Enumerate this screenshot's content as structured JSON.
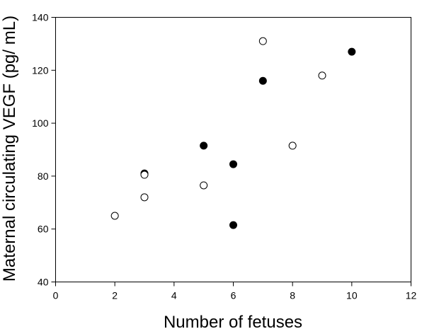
{
  "chart_data": {
    "type": "scatter",
    "title": "",
    "xlabel": "Number of fetuses",
    "ylabel": "Maternal circulating VEGF (pg/ mL)",
    "xlim": [
      0,
      12
    ],
    "ylim": [
      40,
      140
    ],
    "x_ticks": [
      0,
      2,
      4,
      6,
      8,
      10,
      12
    ],
    "y_ticks": [
      40,
      60,
      80,
      100,
      120,
      140
    ],
    "grid": false,
    "legend": "none",
    "series": [
      {
        "marker": "filled-circle",
        "color": "#000000",
        "points": [
          [
            3,
            81
          ],
          [
            5,
            91.5
          ],
          [
            6,
            84.5
          ],
          [
            6,
            61.5
          ],
          [
            7,
            116
          ],
          [
            10,
            127
          ]
        ]
      },
      {
        "marker": "open-circle",
        "color": "#000000",
        "points": [
          [
            2,
            65
          ],
          [
            3,
            80.5
          ],
          [
            3,
            72
          ],
          [
            5,
            76.5
          ],
          [
            7,
            131
          ],
          [
            8,
            91.5
          ],
          [
            9,
            118
          ]
        ]
      }
    ]
  }
}
